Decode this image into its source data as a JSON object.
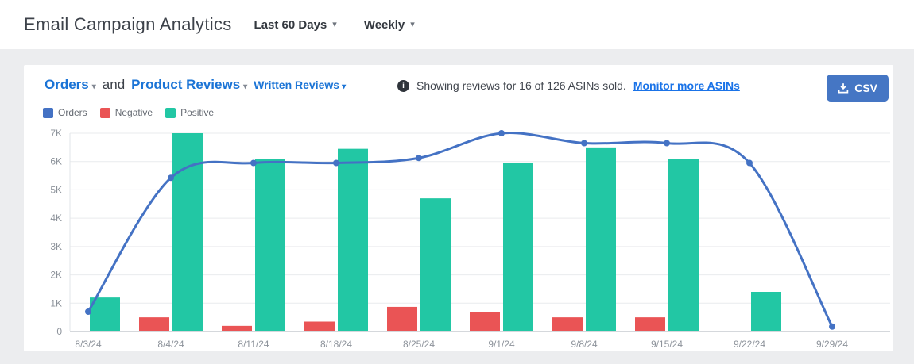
{
  "header": {
    "title": "Email Campaign Analytics",
    "date_range_label": "Last 60 Days",
    "granularity_label": "Weekly"
  },
  "toolbar": {
    "metric_primary": "Orders",
    "conjunction": "and",
    "metric_secondary": "Product Reviews",
    "review_type": "Written Reviews",
    "notice_text": "Showing reviews for 16 of 126 ASINs sold.",
    "notice_link": "Monitor more ASINs",
    "csv_label": "CSV"
  },
  "legend": [
    {
      "label": "Orders",
      "color": "#4472c4"
    },
    {
      "label": "Negative",
      "color": "#ea5455"
    },
    {
      "label": "Positive",
      "color": "#22c7a4"
    }
  ],
  "colors": {
    "accent_link": "#1b74d6",
    "button_blue": "#4576c4",
    "line_blue": "#4472c4",
    "bar_red": "#ea5455",
    "bar_teal": "#22c7a4",
    "grid": "#e9ebee",
    "axis_text": "#8d939b",
    "background": "#ecedef"
  },
  "chart_data": {
    "type": "combo (grouped bar + line, dual axis)",
    "categories": [
      "8/3/24",
      "8/4/24",
      "8/11/24",
      "8/18/24",
      "8/25/24",
      "9/1/24",
      "9/8/24",
      "9/15/24",
      "9/22/24",
      "9/29/24"
    ],
    "series": [
      {
        "name": "Orders",
        "type": "line",
        "axis": "right",
        "color": "#4472c4",
        "values": [
          4,
          31,
          34,
          34,
          35,
          40,
          38,
          38,
          34,
          1
        ]
      },
      {
        "name": "Negative",
        "type": "bar",
        "axis": "left",
        "color": "#ea5455",
        "values": [
          0,
          500,
          200,
          350,
          870,
          700,
          500,
          500,
          0,
          0
        ]
      },
      {
        "name": "Positive",
        "type": "bar",
        "axis": "left",
        "color": "#22c7a4",
        "values": [
          1200,
          7000,
          6100,
          6450,
          4700,
          5950,
          6500,
          6100,
          1400,
          0
        ]
      }
    ],
    "left_axis": {
      "min": 0,
      "max": 7000,
      "tick_labels": [
        "0",
        "1K",
        "2K",
        "3K",
        "4K",
        "5K",
        "6K",
        "7K"
      ]
    },
    "right_axis": {
      "min": 0,
      "max": 40,
      "tick_step": 5
    },
    "grid": true,
    "legend_position": "top-left"
  }
}
